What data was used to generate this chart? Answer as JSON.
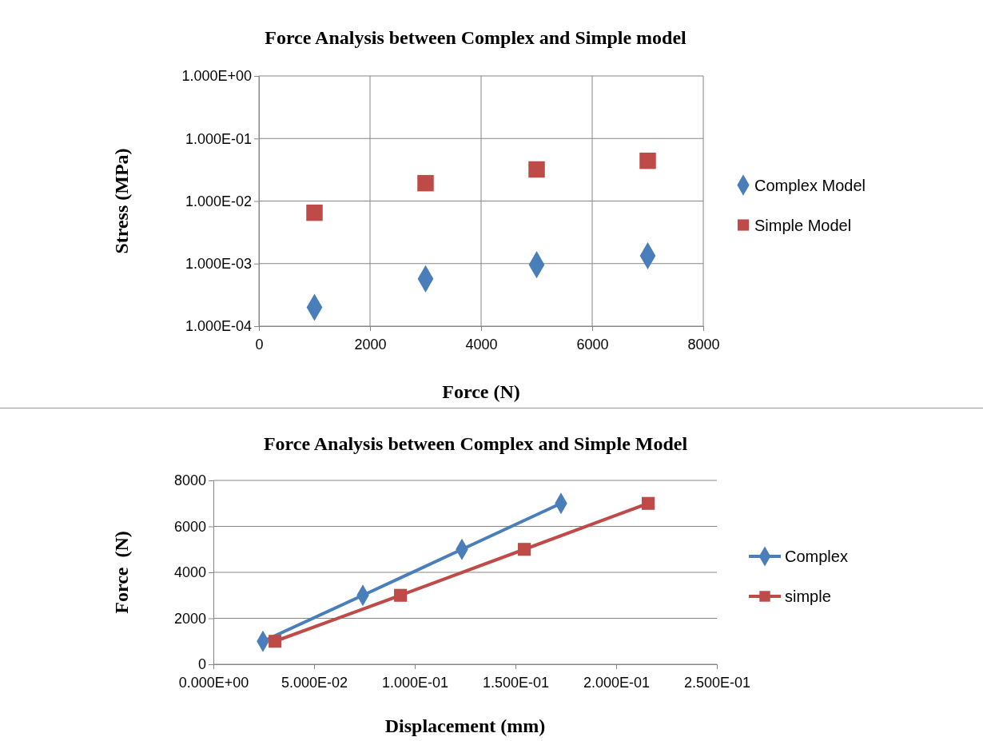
{
  "chart_data": [
    {
      "type": "scatter",
      "title": "Force Analysis between Complex and Simple model",
      "xlabel": "Force (N)",
      "ylabel": "Stress (MPa)",
      "x": [
        1000,
        3000,
        5000,
        7000
      ],
      "xlim": [
        0,
        8000
      ],
      "xticks": [
        0,
        2000,
        4000,
        6000,
        8000
      ],
      "log": "y",
      "ylim": [
        0.0001,
        1
      ],
      "yticks": [
        {
          "value": 0.0001,
          "label": "1.000E-04"
        },
        {
          "value": 0.001,
          "label": "1.000E-03"
        },
        {
          "value": 0.01,
          "label": "1.000E-02"
        },
        {
          "value": 0.1,
          "label": "1.000E-01"
        },
        {
          "value": 1,
          "label": "1.000E+00"
        }
      ],
      "grid": true,
      "legend": "right",
      "series": [
        {
          "name": "Complex Model",
          "color": "#4a7ebb",
          "marker": "diamond",
          "values": [
            0.0002,
            0.00057,
            0.00096,
            0.00133
          ]
        },
        {
          "name": "Simple Model",
          "color": "#be4b48",
          "marker": "square",
          "values": [
            0.0065,
            0.0193,
            0.032,
            0.044
          ]
        }
      ]
    },
    {
      "type": "line",
      "title": "Force Analysis between Complex and Simple Model",
      "xlabel": "Displacement (mm)",
      "ylabel": "Force  (N)",
      "xlim": [
        0,
        0.25
      ],
      "xticks": [
        {
          "value": 0,
          "label": "0.000E+00"
        },
        {
          "value": 0.05,
          "label": "5.000E-02"
        },
        {
          "value": 0.1,
          "label": "1.000E-01"
        },
        {
          "value": 0.15,
          "label": "1.500E-01"
        },
        {
          "value": 0.2,
          "label": "2.000E-01"
        },
        {
          "value": 0.25,
          "label": "2.500E-01"
        }
      ],
      "ylim": [
        0,
        8000
      ],
      "yticks": [
        0,
        2000,
        4000,
        6000,
        8000
      ],
      "grid": "y",
      "legend": "right",
      "series": [
        {
          "name": "Complex",
          "color": "#4a7ebb",
          "marker": "diamond",
          "x": [
            0.0246,
            0.0742,
            0.1234,
            0.1726
          ],
          "values": [
            1000,
            3000,
            5000,
            7000
          ]
        },
        {
          "name": "simple",
          "color": "#be4b48",
          "marker": "square",
          "x": [
            0.0306,
            0.0929,
            0.1544,
            0.2159
          ],
          "values": [
            1000,
            3000,
            5000,
            7000
          ]
        }
      ]
    }
  ]
}
